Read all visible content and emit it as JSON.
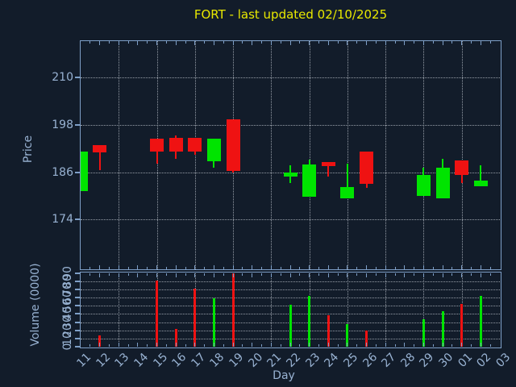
{
  "title": "FORT - last updated 02/10/2025",
  "colors": {
    "background": "#121c2a",
    "spine": "#7e9fc7",
    "tick_label": "#98b2d2",
    "grid": "#c9cfd8",
    "title": "#e8e800",
    "up": "#00e400",
    "down": "#ef1212"
  },
  "chart_data": {
    "type": "candlestick_with_volume",
    "title": "FORT - last updated 02/10/2025",
    "xlabel": "Day",
    "ylabel_price": "Price",
    "ylabel_volume": "Volume (0000)",
    "x_categories": [
      "11",
      "12",
      "13",
      "14",
      "15",
      "16",
      "17",
      "18",
      "19",
      "20",
      "21",
      "22",
      "23",
      "24",
      "25",
      "26",
      "27",
      "28",
      "29",
      "30",
      "01",
      "02",
      "03"
    ],
    "price_yticks": [
      210,
      198,
      186,
      174
    ],
    "price_ylim": [
      161.3,
      219.4
    ],
    "volume_yticks": [
      90,
      80,
      70,
      60,
      50,
      40,
      30,
      20,
      10,
      0
    ],
    "volume_ylim": [
      0,
      90
    ],
    "grid": "dotted; horizontal at yticks; vertical every 2 days at 13,15,17,19,21,23,25,27,29,01",
    "legend": "none",
    "candles": [
      {
        "day": "11",
        "open": 181.3,
        "high": 191.2,
        "low": 181.3,
        "close": 191.2,
        "volume": 0,
        "color": "green"
      },
      {
        "day": "12",
        "open": 192.8,
        "high": 192.8,
        "low": 186.6,
        "close": 191.1,
        "volume": 14,
        "color": "red"
      },
      {
        "day": "15",
        "open": 194.5,
        "high": 194.5,
        "low": 188.1,
        "close": 191.3,
        "volume": 81,
        "color": "red"
      },
      {
        "day": "16",
        "open": 194.8,
        "high": 195.3,
        "low": 189.5,
        "close": 191.3,
        "volume": 22,
        "color": "red"
      },
      {
        "day": "17",
        "open": 194.8,
        "high": 194.8,
        "low": 190.4,
        "close": 191.3,
        "volume": 71,
        "color": "red"
      },
      {
        "day": "18",
        "open": 188.8,
        "high": 194.6,
        "low": 187.1,
        "close": 194.6,
        "volume": 59,
        "color": "green"
      },
      {
        "day": "19",
        "open": 199.4,
        "high": 199.4,
        "low": 185.9,
        "close": 186.4,
        "volume": 90,
        "color": "red"
      },
      {
        "day": "22",
        "open": 184.8,
        "high": 187.8,
        "low": 183.3,
        "close": 185.9,
        "volume": 51,
        "color": "green"
      },
      {
        "day": "23",
        "open": 179.7,
        "high": 189.2,
        "low": 179.7,
        "close": 187.9,
        "volume": 62,
        "color": "green"
      },
      {
        "day": "24",
        "open": 188.5,
        "high": 188.5,
        "low": 184.8,
        "close": 187.6,
        "volume": 38,
        "color": "red"
      },
      {
        "day": "25",
        "open": 179.4,
        "high": 188.1,
        "low": 179.4,
        "close": 182.3,
        "volume": 28,
        "color": "green"
      },
      {
        "day": "26",
        "open": 191.2,
        "high": 191.2,
        "low": 182.1,
        "close": 183.1,
        "volume": 20,
        "color": "red"
      },
      {
        "day": "29",
        "open": 180.0,
        "high": 187.2,
        "low": 180.0,
        "close": 185.4,
        "volume": 33,
        "color": "green"
      },
      {
        "day": "30",
        "open": 179.4,
        "high": 189.5,
        "low": 179.4,
        "close": 187.1,
        "volume": 43,
        "color": "green"
      },
      {
        "day": "01",
        "open": 189.0,
        "high": 189.0,
        "low": 183.3,
        "close": 185.3,
        "volume": 52,
        "color": "red"
      },
      {
        "day": "02",
        "open": 182.4,
        "high": 187.8,
        "low": 182.4,
        "close": 183.8,
        "volume": 62,
        "color": "green"
      }
    ]
  }
}
